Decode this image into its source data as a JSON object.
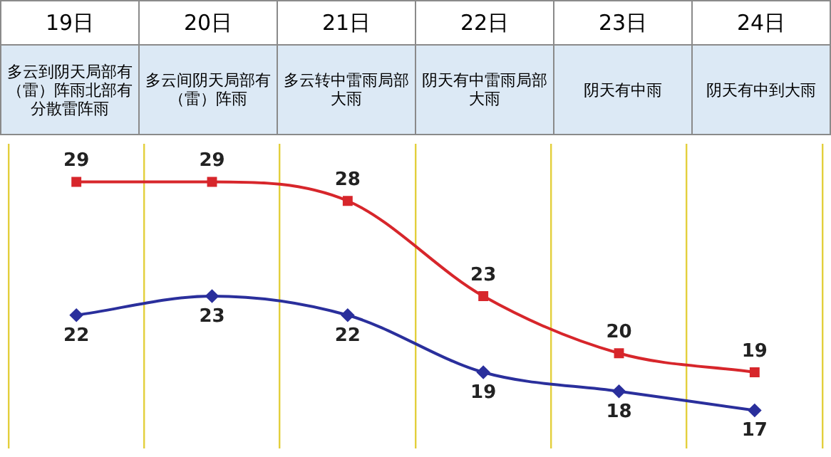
{
  "chart_data": {
    "type": "line",
    "categories": [
      "19日",
      "20日",
      "21日",
      "22日",
      "23日",
      "24日"
    ],
    "annotations": [
      "多云到阴天局部有（雷）阵雨北部有分散雷阵雨",
      "多云间阴天局部有（雷）阵雨",
      "多云转中雷雨局部大雨",
      "阴天有中雷雨局部大雨",
      "阴天有中雨",
      "阴天有中到大雨"
    ],
    "series": [
      {
        "color": "#d7262b",
        "marker": "square",
        "values": [
          29,
          29,
          28,
          23,
          20,
          19
        ]
      },
      {
        "color": "#2a2f9c",
        "marker": "diamond",
        "values": [
          22,
          23,
          22,
          19,
          18,
          17
        ]
      }
    ],
    "ylim": [
      15,
      31
    ],
    "data_labels": true,
    "grid": "x",
    "tick_labels": false,
    "legend": false
  }
}
